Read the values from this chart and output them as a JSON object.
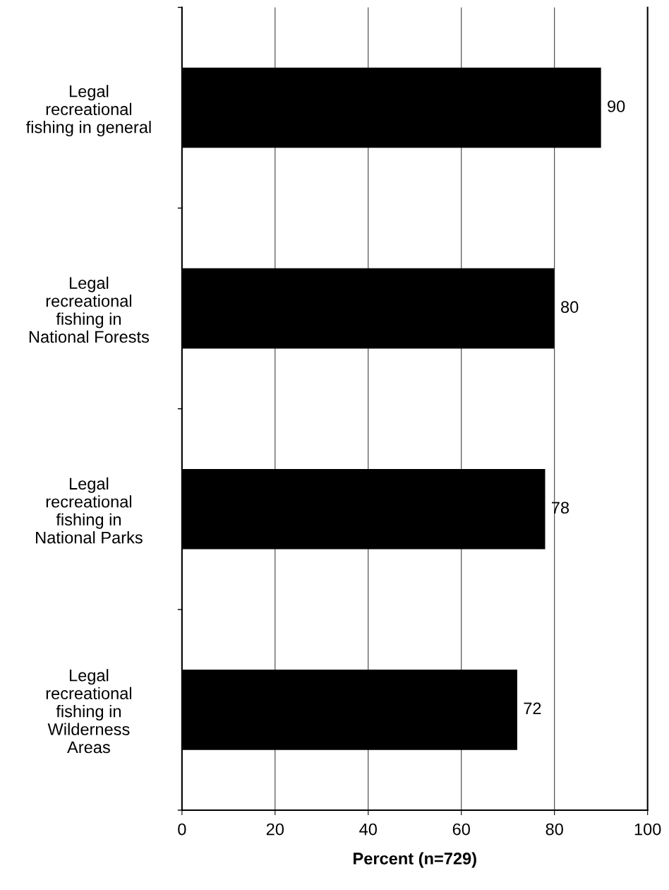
{
  "chart_data": {
    "type": "bar",
    "orientation": "horizontal",
    "categories": [
      "Legal\nrecreational\nfishing in general",
      "Legal\nrecreational\nfishing in\nNational Forests",
      "Legal\nrecreational\nfishing in\nNational Parks",
      "Legal\nrecreational\nfishing in\nWilderness\nAreas"
    ],
    "values": [
      90,
      80,
      78,
      72
    ],
    "color": "#000000",
    "xlim": [
      0,
      100
    ],
    "xticks": [
      0,
      20,
      40,
      60,
      80,
      100
    ],
    "xlabel": "Percent (n=729)",
    "grid": "x",
    "data_labels": true,
    "legend": false
  }
}
